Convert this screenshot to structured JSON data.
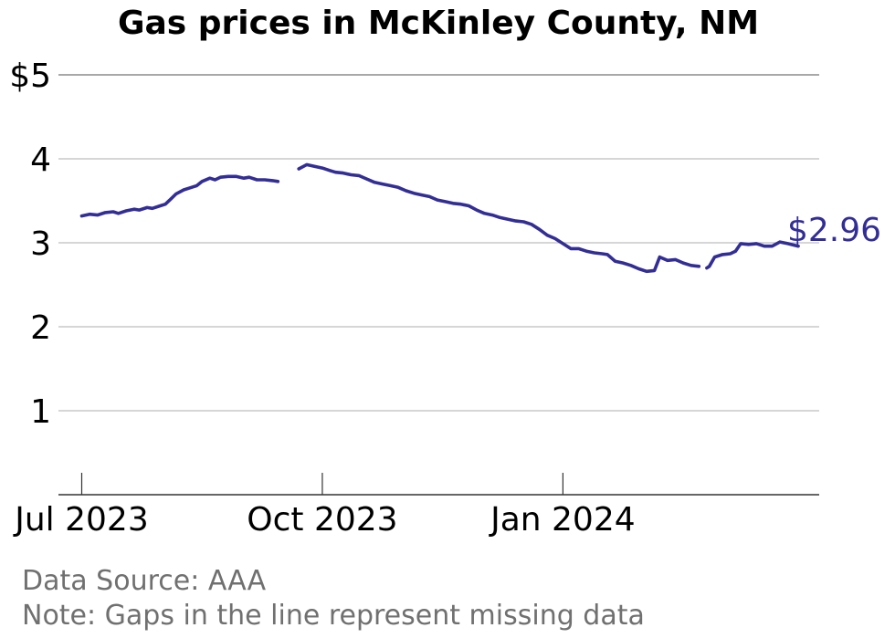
{
  "chart_data": {
    "type": "line",
    "title": "Gas prices in McKinley County, NM",
    "xlabel": "",
    "ylabel": "",
    "ylim": [
      0,
      5
    ],
    "yticks": [
      {
        "value": 5,
        "label": "$5"
      },
      {
        "value": 4,
        "label": "4"
      },
      {
        "value": 3,
        "label": "3"
      },
      {
        "value": 2,
        "label": "2"
      },
      {
        "value": 1,
        "label": "1"
      }
    ],
    "xlim": [
      "2023-06-20",
      "2024-04-08"
    ],
    "xticks": [
      {
        "date": "2023-07-01",
        "label": "Jul 2023"
      },
      {
        "date": "2023-10-01",
        "label": "Oct 2023"
      },
      {
        "date": "2024-01-01",
        "label": "Jan 2024"
      }
    ],
    "grid": true,
    "line_color": "#332e96",
    "end_label": "$2.96",
    "series": [
      {
        "segments": [
          [
            [
              "2023-07-01",
              3.32
            ],
            [
              "2023-07-04",
              3.34
            ],
            [
              "2023-07-07",
              3.33
            ],
            [
              "2023-07-10",
              3.36
            ],
            [
              "2023-07-13",
              3.37
            ],
            [
              "2023-07-15",
              3.35
            ],
            [
              "2023-07-18",
              3.38
            ],
            [
              "2023-07-21",
              3.4
            ],
            [
              "2023-07-23",
              3.39
            ],
            [
              "2023-07-26",
              3.42
            ],
            [
              "2023-07-28",
              3.41
            ],
            [
              "2023-07-31",
              3.44
            ],
            [
              "2023-08-02",
              3.46
            ],
            [
              "2023-08-04",
              3.52
            ],
            [
              "2023-08-06",
              3.58
            ],
            [
              "2023-08-09",
              3.63
            ],
            [
              "2023-08-11",
              3.65
            ],
            [
              "2023-08-14",
              3.68
            ],
            [
              "2023-08-16",
              3.73
            ],
            [
              "2023-08-19",
              3.77
            ],
            [
              "2023-08-21",
              3.75
            ],
            [
              "2023-08-23",
              3.78
            ],
            [
              "2023-08-26",
              3.79
            ],
            [
              "2023-08-29",
              3.79
            ],
            [
              "2023-09-01",
              3.77
            ],
            [
              "2023-09-03",
              3.78
            ],
            [
              "2023-09-06",
              3.75
            ],
            [
              "2023-09-09",
              3.75
            ],
            [
              "2023-09-12",
              3.74
            ],
            [
              "2023-09-14",
              3.73
            ]
          ],
          [
            [
              "2023-09-22",
              3.88
            ],
            [
              "2023-09-25",
              3.93
            ],
            [
              "2023-09-28",
              3.91
            ],
            [
              "2023-10-01",
              3.89
            ],
            [
              "2023-10-04",
              3.86
            ],
            [
              "2023-10-06",
              3.84
            ],
            [
              "2023-10-09",
              3.83
            ],
            [
              "2023-10-12",
              3.81
            ],
            [
              "2023-10-15",
              3.8
            ],
            [
              "2023-10-18",
              3.76
            ],
            [
              "2023-10-21",
              3.72
            ],
            [
              "2023-10-24",
              3.7
            ],
            [
              "2023-10-27",
              3.68
            ],
            [
              "2023-10-30",
              3.66
            ],
            [
              "2023-11-02",
              3.62
            ],
            [
              "2023-11-05",
              3.59
            ],
            [
              "2023-11-08",
              3.57
            ],
            [
              "2023-11-11",
              3.55
            ],
            [
              "2023-11-14",
              3.51
            ],
            [
              "2023-11-17",
              3.49
            ],
            [
              "2023-11-20",
              3.47
            ],
            [
              "2023-11-23",
              3.46
            ],
            [
              "2023-11-26",
              3.44
            ],
            [
              "2023-11-29",
              3.39
            ],
            [
              "2023-12-02",
              3.35
            ],
            [
              "2023-12-05",
              3.33
            ],
            [
              "2023-12-08",
              3.3
            ],
            [
              "2023-12-11",
              3.28
            ],
            [
              "2023-12-14",
              3.26
            ],
            [
              "2023-12-17",
              3.25
            ],
            [
              "2023-12-20",
              3.22
            ],
            [
              "2023-12-23",
              3.16
            ],
            [
              "2023-12-26",
              3.09
            ],
            [
              "2023-12-29",
              3.05
            ],
            [
              "2024-01-01",
              2.99
            ],
            [
              "2024-01-04",
              2.93
            ],
            [
              "2024-01-07",
              2.93
            ],
            [
              "2024-01-10",
              2.9
            ],
            [
              "2024-01-13",
              2.88
            ],
            [
              "2024-01-16",
              2.87
            ],
            [
              "2024-01-18",
              2.86
            ],
            [
              "2024-01-21",
              2.78
            ],
            [
              "2024-01-24",
              2.76
            ],
            [
              "2024-01-27",
              2.73
            ],
            [
              "2024-01-30",
              2.69
            ],
            [
              "2024-02-02",
              2.66
            ],
            [
              "2024-02-05",
              2.67
            ],
            [
              "2024-02-07",
              2.83
            ],
            [
              "2024-02-10",
              2.79
            ],
            [
              "2024-02-13",
              2.8
            ],
            [
              "2024-02-16",
              2.76
            ],
            [
              "2024-02-19",
              2.73
            ],
            [
              "2024-02-22",
              2.72
            ]
          ],
          [
            [
              "2024-02-25",
              2.7
            ],
            [
              "2024-02-26",
              2.72
            ],
            [
              "2024-02-28",
              2.83
            ],
            [
              "2024-03-02",
              2.86
            ],
            [
              "2024-03-05",
              2.87
            ],
            [
              "2024-03-07",
              2.9
            ],
            [
              "2024-03-09",
              2.99
            ],
            [
              "2024-03-12",
              2.98
            ],
            [
              "2024-03-15",
              2.99
            ],
            [
              "2024-03-18",
              2.96
            ],
            [
              "2024-03-21",
              2.96
            ],
            [
              "2024-03-24",
              3.01
            ],
            [
              "2024-03-27",
              2.99
            ],
            [
              "2024-03-31",
              2.96
            ]
          ]
        ]
      }
    ]
  },
  "footer": {
    "source": "Data Source: AAA",
    "note": "Note: Gaps in the line represent missing data"
  }
}
